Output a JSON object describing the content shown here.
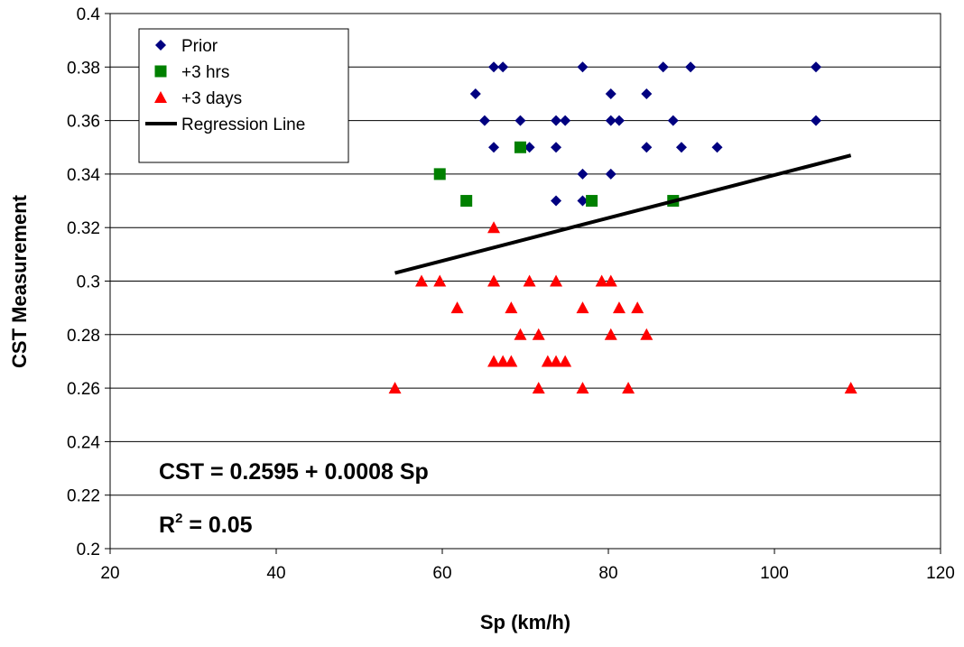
{
  "chart_data": {
    "type": "scatter",
    "title": "",
    "xlabel": "Sp (km/h)",
    "ylabel": "CST Measurement",
    "xlim": [
      20,
      120
    ],
    "ylim": [
      0.2,
      0.4
    ],
    "x_ticks": [
      "20",
      "40",
      "60",
      "80",
      "100",
      "120"
    ],
    "y_ticks": [
      "0.2",
      "0.22",
      "0.24",
      "0.26",
      "0.28",
      "0.3",
      "0.32",
      "0.34",
      "0.36",
      "0.38",
      "0.4"
    ],
    "grid": "horizontal major gridlines",
    "legend_position": "top-left",
    "series": [
      {
        "name": "Prior",
        "marker": "diamond",
        "color": "#000080",
        "points": [
          [
            66.2,
            0.38
          ],
          [
            67.3,
            0.38
          ],
          [
            76.9,
            0.38
          ],
          [
            86.6,
            0.38
          ],
          [
            89.9,
            0.38
          ],
          [
            105,
            0.38
          ],
          [
            64,
            0.37
          ],
          [
            80.3,
            0.37
          ],
          [
            84.6,
            0.37
          ],
          [
            65.1,
            0.36
          ],
          [
            69.4,
            0.36
          ],
          [
            73.7,
            0.36
          ],
          [
            74.8,
            0.36
          ],
          [
            80.3,
            0.36
          ],
          [
            81.3,
            0.36
          ],
          [
            87.8,
            0.36
          ],
          [
            105,
            0.36
          ],
          [
            66.2,
            0.35
          ],
          [
            70.5,
            0.35
          ],
          [
            73.7,
            0.35
          ],
          [
            84.6,
            0.35
          ],
          [
            88.8,
            0.35
          ],
          [
            93.1,
            0.35
          ],
          [
            76.9,
            0.34
          ],
          [
            80.3,
            0.34
          ],
          [
            73.7,
            0.33
          ],
          [
            76.9,
            0.33
          ]
        ]
      },
      {
        "name": "+3 hrs",
        "marker": "square",
        "color": "#008000",
        "points": [
          [
            69.4,
            0.35
          ],
          [
            59.7,
            0.34
          ],
          [
            62.9,
            0.33
          ],
          [
            78,
            0.33
          ],
          [
            87.8,
            0.33
          ]
        ]
      },
      {
        "name": "+3 days",
        "marker": "triangle",
        "color": "#ff0000",
        "points": [
          [
            66.2,
            0.32
          ],
          [
            57.5,
            0.3
          ],
          [
            59.7,
            0.3
          ],
          [
            66.2,
            0.3
          ],
          [
            70.5,
            0.3
          ],
          [
            73.7,
            0.3
          ],
          [
            79.2,
            0.3
          ],
          [
            80.3,
            0.3
          ],
          [
            61.8,
            0.29
          ],
          [
            68.3,
            0.29
          ],
          [
            76.9,
            0.29
          ],
          [
            81.3,
            0.29
          ],
          [
            83.5,
            0.29
          ],
          [
            69.4,
            0.28
          ],
          [
            71.6,
            0.28
          ],
          [
            80.3,
            0.28
          ],
          [
            84.6,
            0.28
          ],
          [
            66.2,
            0.27
          ],
          [
            67.3,
            0.27
          ],
          [
            68.3,
            0.27
          ],
          [
            72.7,
            0.27
          ],
          [
            73.7,
            0.27
          ],
          [
            74.8,
            0.27
          ],
          [
            54.3,
            0.26
          ],
          [
            71.6,
            0.26
          ],
          [
            76.9,
            0.26
          ],
          [
            82.4,
            0.26
          ],
          [
            109.2,
            0.26
          ]
        ]
      },
      {
        "name": "Regression Line",
        "type": "line",
        "color": "#000000",
        "points": [
          [
            54.3,
            0.303
          ],
          [
            109.2,
            0.347
          ]
        ]
      }
    ],
    "annotations": {
      "equation": "CST = 0.2595 + 0.0008 Sp",
      "r2_label": "R",
      "r2_exponent": "2",
      "r2_value": " = 0.05"
    }
  }
}
